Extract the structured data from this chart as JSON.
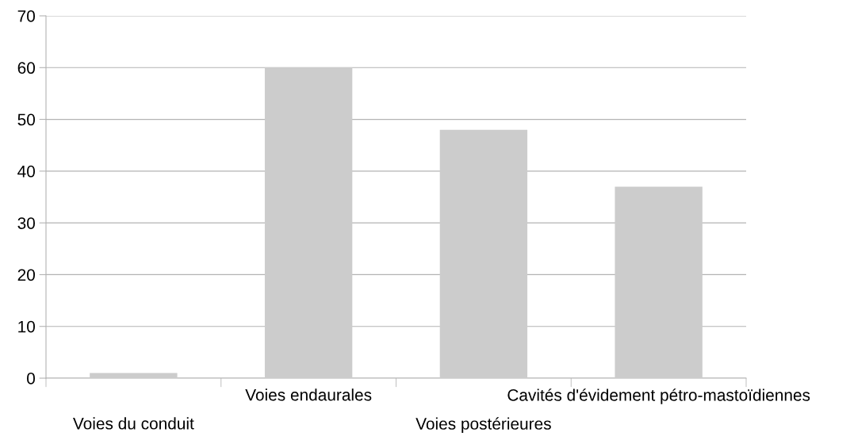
{
  "chart_data": {
    "type": "bar",
    "categories": [
      "Voies du conduit",
      "Voies endaurales",
      "Voies postérieures",
      "Cavités d'évidement pétro-mastoïdiennes"
    ],
    "values": [
      1,
      60,
      48,
      37
    ],
    "color": "#cccccc",
    "ylim": [
      0,
      70
    ],
    "yticks": [
      0,
      10,
      20,
      30,
      40,
      50,
      60,
      70
    ],
    "grid": "y",
    "legend": false
  }
}
